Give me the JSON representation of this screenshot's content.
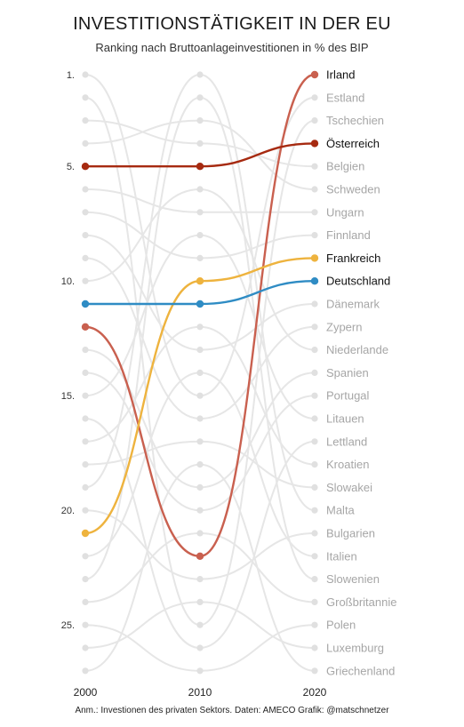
{
  "title": "INVESTITIONSTÄTIGKEIT IN DER EU",
  "subtitle": "Ranking nach Bruttoanlageinvestitionen in % des BIP",
  "footnote": "Anm.: Investionen des privaten Sektors. Daten: AMECO Grafik: @matschnetzer",
  "colors": {
    "background_line": "#e6e6e6",
    "background_dot": "#e0e0e0",
    "muted_text": "#a6a6a6",
    "highlight_text": "#111111",
    "irland": "#c9604f",
    "oesterreich": "#a62a10",
    "frankreich": "#eeb33e",
    "deutschland": "#2f8cc4"
  },
  "chart_data": {
    "type": "bump",
    "x": [
      2000,
      2010,
      2020
    ],
    "x_tick_labels": [
      "2000",
      "2010",
      "2020"
    ],
    "rank_range": [
      1,
      27
    ],
    "rank_tick_labels": [
      {
        "rank": 1,
        "label": "1."
      },
      {
        "rank": 5,
        "label": "5."
      },
      {
        "rank": 10,
        "label": "10."
      },
      {
        "rank": 15,
        "label": "15."
      },
      {
        "rank": 20,
        "label": "20."
      },
      {
        "rank": 25,
        "label": "25."
      }
    ],
    "end_labels": [
      "Irland",
      "Estland",
      "Tschechien",
      "Österreich",
      "Belgien",
      "Schweden",
      "Ungarn",
      "Finnland",
      "Frankreich",
      "Deutschland",
      "Dänemark",
      "Zypern",
      "Niederlande",
      "Spanien",
      "Portugal",
      "Litauen",
      "Lettland",
      "Kroatien",
      "Slowakei",
      "Malta",
      "Bulgarien",
      "Italien",
      "Slowenien",
      "Großbritannie",
      "Polen",
      "Luxemburg",
      "Griechenland"
    ],
    "highlighted": [
      {
        "name": "Irland",
        "ranks": [
          12,
          22,
          1
        ],
        "color_key": "irland"
      },
      {
        "name": "Österreich",
        "ranks": [
          5,
          5,
          4
        ],
        "color_key": "oesterreich"
      },
      {
        "name": "Frankreich",
        "ranks": [
          21,
          10,
          9
        ],
        "color_key": "frankreich"
      },
      {
        "name": "Deutschland",
        "ranks": [
          11,
          11,
          10
        ],
        "color_key": "deutschland"
      }
    ],
    "background_ranks": [
      [
        1,
        15,
        2
      ],
      [
        2,
        25,
        3
      ],
      [
        3,
        4,
        5
      ],
      [
        4,
        3,
        6
      ],
      [
        6,
        7,
        7
      ],
      [
        7,
        9,
        8
      ],
      [
        8,
        13,
        11
      ],
      [
        9,
        16,
        12
      ],
      [
        10,
        6,
        13
      ],
      [
        13,
        19,
        14
      ],
      [
        14,
        20,
        15
      ],
      [
        15,
        8,
        16
      ],
      [
        16,
        26,
        17
      ],
      [
        17,
        12,
        18
      ],
      [
        18,
        17,
        19
      ],
      [
        19,
        1,
        20
      ],
      [
        20,
        23,
        21
      ],
      [
        22,
        14,
        22
      ],
      [
        23,
        2,
        23
      ],
      [
        24,
        21,
        24
      ],
      [
        25,
        27,
        25
      ],
      [
        26,
        24,
        26
      ],
      [
        27,
        18,
        27
      ]
    ]
  }
}
